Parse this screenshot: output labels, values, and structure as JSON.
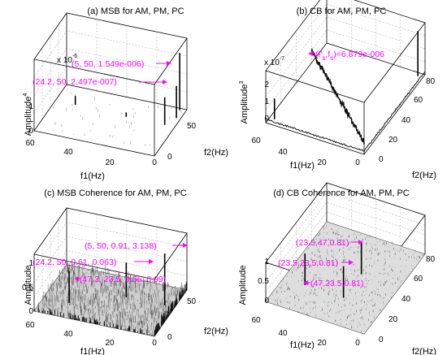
{
  "figure": {
    "background": "#ffffff",
    "annotation_color": "#ff00ff"
  },
  "chart_data": [
    {
      "id": "a",
      "type": "surface",
      "title": "(a) MSB for AM, PM, PC",
      "xlabel": "f1(Hz)",
      "ylabel": "f2(Hz)",
      "zlabel": "Amplitude",
      "zlabel_exp": "4",
      "z_multiplier": "x 10",
      "z_multiplier_exp": "-6",
      "x_ticks": [
        "60",
        "40",
        "20",
        "0"
      ],
      "y_ticks": [
        "0",
        "50"
      ],
      "z_ticks": [
        "0",
        "1"
      ],
      "xlim": [
        0,
        60
      ],
      "ylim": [
        0,
        80
      ],
      "zlim": [
        0,
        4
      ],
      "grid": true,
      "style": "sparse",
      "peaks": [
        {
          "f1": 5,
          "f2": 50,
          "z": 1.549
        },
        {
          "f1": 24.2,
          "f2": 50,
          "z": 0.2497
        },
        {
          "f1": 3,
          "f2": 77,
          "z": 3.2
        },
        {
          "f1": 2,
          "f2": 64,
          "z": 1.8
        },
        {
          "f1": 50,
          "f2": 52,
          "z": 0.5
        }
      ],
      "annotations": [
        {
          "text": "(5, 50, 1.549e-006)",
          "arrow": "right"
        },
        {
          "text": "(24.2, 50, 2.497e-007)",
          "arrow": "right"
        }
      ]
    },
    {
      "id": "b",
      "type": "surface",
      "title": "(b) CB for AM, PM, PC",
      "xlabel": "f1(Hz)",
      "ylabel": "f2(Hz)",
      "zlabel": "Amplitude",
      "zlabel_exp": "3",
      "z_multiplier": "x 10",
      "z_multiplier_exp": "-7",
      "x_ticks": [
        "60",
        "40",
        "20",
        "0"
      ],
      "y_ticks": [
        "0",
        "20",
        "40",
        "60",
        "80"
      ],
      "z_ticks": [
        "0",
        "1",
        "2"
      ],
      "xlim": [
        0,
        60
      ],
      "ylim": [
        0,
        80
      ],
      "zlim": [
        0,
        3
      ],
      "grid": true,
      "style": "ridges",
      "peaks": [
        {
          "f1": 3,
          "f2": 77,
          "z": 2.6
        },
        {
          "f1": 57,
          "f2": 5,
          "z": 1.2
        }
      ],
      "annotations": [
        {
          "text": "(f'",
          "arrow": "left"
        }
      ],
      "annotation_parts": {
        "f_sym": "f",
        "sub": "s",
        "sep": ",",
        "tail": ")=6.879e-006"
      }
    },
    {
      "id": "c",
      "type": "surface",
      "title": "(c) MSB Coherence for AM, PM, PC",
      "xlabel": "f1(Hz)",
      "ylabel": "f2(Hz)",
      "zlabel": "Amplitude",
      "x_ticks": [
        "60",
        "40",
        "20",
        "0"
      ],
      "y_ticks": [
        "0",
        "50"
      ],
      "z_ticks": [
        "0",
        "0.5",
        "1"
      ],
      "xlim": [
        0,
        60
      ],
      "ylim": [
        0,
        80
      ],
      "zlim": [
        0,
        1
      ],
      "grid": true,
      "style": "dense",
      "peaks": [
        {
          "f1": 5,
          "f2": 50,
          "z": 0.91
        },
        {
          "f1": 24.2,
          "f2": 50,
          "z": 0.61
        },
        {
          "f1": 47.3,
          "f2": 23.5,
          "z": 0.56
        }
      ],
      "annotations": [
        {
          "text": "(5, 50, 0.91, 3.138)",
          "arrow": "right"
        },
        {
          "text": "(24.2, 50, 0.61, 0.063)",
          "arrow": "right"
        },
        {
          "text": "(47.3, 23.5, 0.56, 0.99)",
          "arrow": "left"
        }
      ]
    },
    {
      "id": "d",
      "type": "surface",
      "title": "(d) CB Coherence for AM, PM, PC",
      "xlabel": "f1(Hz)",
      "ylabel": "f2(Hz)",
      "zlabel": "Amplitude",
      "x_ticks": [
        "60",
        "40",
        "20",
        "0"
      ],
      "y_ticks": [
        "0",
        "20",
        "40",
        "60",
        "80"
      ],
      "z_ticks": [
        "0",
        "0.5",
        "1"
      ],
      "xlim": [
        0,
        60
      ],
      "ylim": [
        0,
        80
      ],
      "zlim": [
        0,
        1
      ],
      "grid": true,
      "style": "floor",
      "peaks": [
        {
          "f1": 23.5,
          "f2": 47,
          "z": 0.81
        },
        {
          "f1": 23.5,
          "f2": 23.5,
          "z": 0.81
        },
        {
          "f1": 47,
          "f2": 23.5,
          "z": 0.81
        }
      ],
      "annotations": [
        {
          "text": "(23.5,47,0.81)",
          "arrow": "right"
        },
        {
          "text": "(23.5,23.5,0.81)",
          "arrow": "right"
        },
        {
          "text": "(47,23.5,0.81)",
          "arrow": "left"
        }
      ]
    }
  ]
}
